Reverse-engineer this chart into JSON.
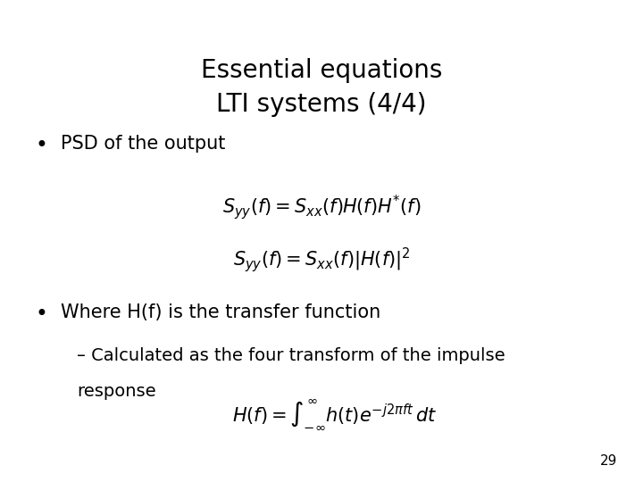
{
  "title_line1": "Essential equations",
  "title_line2": "LTI systems (4/4)",
  "title_fontsize": 20,
  "bullet1": "PSD of the output",
  "bullet2": "Where H(f) is the transfer function",
  "sub_bullet1": "– Calculated as the four transform of the impulse",
  "sub_bullet2": "response",
  "eq1": "$S_{yy}(f) = S_{xx}(f)H(f)H^{*}(f)$",
  "eq2": "$S_{yy}(f) = S_{xx}(f)|H(f)|^{2}$",
  "eq3": "$H(f) = \\int_{-\\infty}^{\\infty} h(t)e^{-j2\\pi ft}\\,dt$",
  "page_number": "29",
  "bg_color": "#ffffff",
  "text_color": "#000000",
  "bullet_fontsize": 15,
  "sub_bullet_fontsize": 14,
  "eq_fontsize": 15,
  "page_num_fontsize": 11
}
